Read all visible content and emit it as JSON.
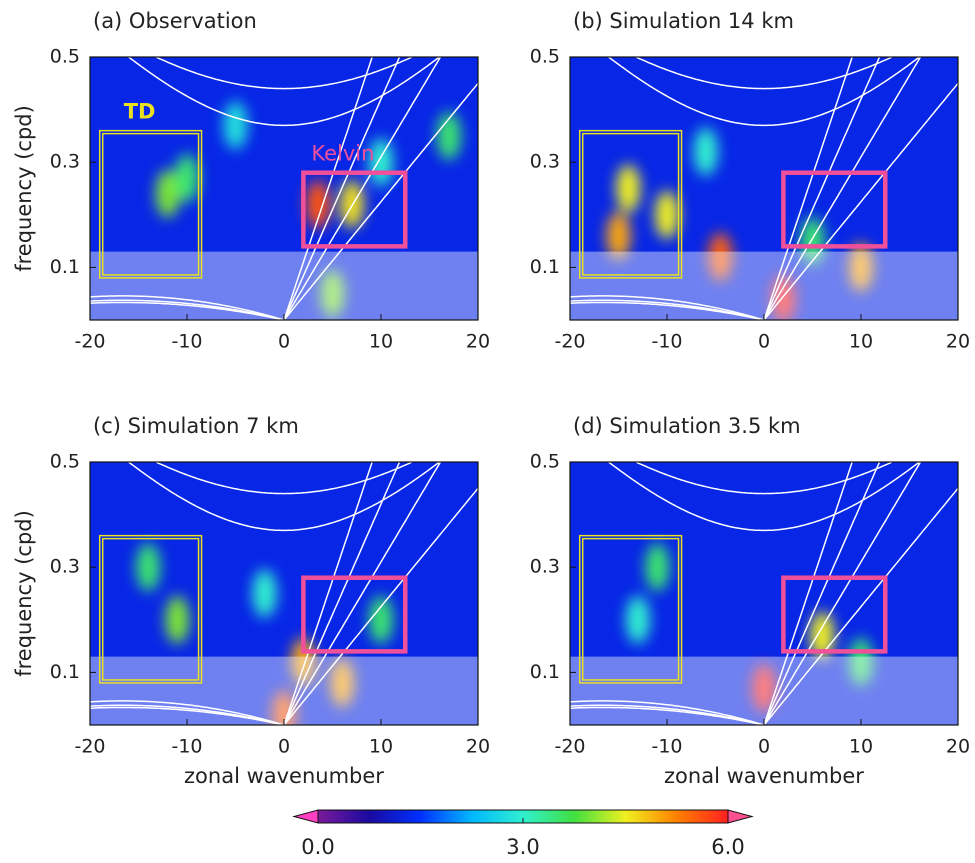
{
  "chart_data": [
    {
      "type": "heatmap",
      "title": "(a) Observation",
      "ylabel": "frequency (cpd)",
      "xlim": [
        -20,
        20
      ],
      "xticks": [
        -20,
        -10,
        0,
        10,
        20
      ],
      "ylim": [
        0,
        0.5
      ],
      "yticks": [
        0.1,
        0.3,
        0.5
      ],
      "background": 1.3,
      "shade_below": 0.13,
      "boxes": [
        {
          "label": "TD",
          "xlim": [
            -19,
            -8.5
          ],
          "ylim": [
            0.08,
            0.36
          ],
          "color": "#e8e020"
        },
        {
          "label": "Kelvin",
          "xlim": [
            2,
            12.5
          ],
          "ylim": [
            0.14,
            0.28
          ],
          "color": "#f0509a"
        }
      ],
      "blobs": [
        {
          "x": -12,
          "y": 0.24,
          "value": 4
        },
        {
          "x": -10,
          "y": 0.27,
          "value": 3.5
        },
        {
          "x": 3.5,
          "y": 0.22,
          "value": 5.6
        },
        {
          "x": 7,
          "y": 0.22,
          "value": 4.6
        },
        {
          "x": 10,
          "y": 0.3,
          "value": 3
        },
        {
          "x": -5,
          "y": 0.37,
          "value": 2.8
        },
        {
          "x": 17,
          "y": 0.35,
          "value": 3.5
        },
        {
          "x": 5,
          "y": 0.05,
          "value": 4
        }
      ]
    },
    {
      "type": "heatmap",
      "title": "(b) Simulation 14 km",
      "xlim": [
        -20,
        20
      ],
      "xticks": [
        -20,
        -10,
        0,
        10,
        20
      ],
      "ylim": [
        0,
        0.5
      ],
      "yticks": [
        0.1,
        0.3,
        0.5
      ],
      "background": 1.3,
      "shade_below": 0.13,
      "boxes": [
        {
          "xlim": [
            -19,
            -8.5
          ],
          "ylim": [
            0.08,
            0.36
          ],
          "color": "#e8e020"
        },
        {
          "xlim": [
            2,
            12.5
          ],
          "ylim": [
            0.14,
            0.28
          ],
          "color": "#f0509a"
        }
      ],
      "blobs": [
        {
          "x": -14,
          "y": 0.25,
          "value": 4.5
        },
        {
          "x": -15,
          "y": 0.16,
          "value": 5
        },
        {
          "x": -10,
          "y": 0.2,
          "value": 4.5
        },
        {
          "x": -4.5,
          "y": 0.12,
          "value": 5.5
        },
        {
          "x": 5,
          "y": 0.15,
          "value": 3.5
        },
        {
          "x": 10,
          "y": 0.1,
          "value": 5
        },
        {
          "x": 2,
          "y": 0.04,
          "value": 6
        },
        {
          "x": -6,
          "y": 0.32,
          "value": 3
        }
      ]
    },
    {
      "type": "heatmap",
      "title": "(c) Simulation 7 km",
      "ylabel": "frequency (cpd)",
      "xlabel": "zonal wavenumber",
      "xlim": [
        -20,
        20
      ],
      "xticks": [
        -20,
        -10,
        0,
        10,
        20
      ],
      "ylim": [
        0,
        0.5
      ],
      "yticks": [
        0.1,
        0.3,
        0.5
      ],
      "background": 1.3,
      "shade_below": 0.13,
      "boxes": [
        {
          "xlim": [
            -19,
            -8.5
          ],
          "ylim": [
            0.08,
            0.36
          ],
          "color": "#e8e020"
        },
        {
          "xlim": [
            2,
            12.5
          ],
          "ylim": [
            0.14,
            0.28
          ],
          "color": "#f0509a"
        }
      ],
      "blobs": [
        {
          "x": -14,
          "y": 0.3,
          "value": 3.5
        },
        {
          "x": -11,
          "y": 0.2,
          "value": 4
        },
        {
          "x": 0,
          "y": 0.02,
          "value": 5.5
        },
        {
          "x": 2,
          "y": 0.12,
          "value": 5
        },
        {
          "x": 6,
          "y": 0.08,
          "value": 5
        },
        {
          "x": 10,
          "y": 0.2,
          "value": 3.5
        },
        {
          "x": -2,
          "y": 0.25,
          "value": 3
        }
      ]
    },
    {
      "type": "heatmap",
      "title": "(d) Simulation 3.5 km",
      "xlabel": "zonal wavenumber",
      "xlim": [
        -20,
        20
      ],
      "xticks": [
        -20,
        -10,
        0,
        10,
        20
      ],
      "ylim": [
        0,
        0.5
      ],
      "yticks": [
        0.1,
        0.3,
        0.5
      ],
      "background": 1.3,
      "shade_below": 0.13,
      "boxes": [
        {
          "xlim": [
            -19,
            -8.5
          ],
          "ylim": [
            0.08,
            0.36
          ],
          "color": "#e8e020"
        },
        {
          "xlim": [
            2,
            12.5
          ],
          "ylim": [
            0.14,
            0.28
          ],
          "color": "#f0509a"
        }
      ],
      "blobs": [
        {
          "x": -11,
          "y": 0.3,
          "value": 3.5
        },
        {
          "x": 0,
          "y": 0.07,
          "value": 6
        },
        {
          "x": 6,
          "y": 0.17,
          "value": 4.5
        },
        {
          "x": 10,
          "y": 0.12,
          "value": 3.5
        },
        {
          "x": -13,
          "y": 0.2,
          "value": 3
        }
      ]
    }
  ],
  "colorbar": {
    "clim": [
      0,
      6
    ],
    "ticks": [
      {
        "value": 0,
        "label": "0.0"
      },
      {
        "value": 3,
        "label": "3.0"
      },
      {
        "value": 6,
        "label": "6.0"
      }
    ],
    "colors": [
      "#7a1a9a",
      "#1a0aa0",
      "#0030ff",
      "#00b8ff",
      "#30f0d0",
      "#40e040",
      "#f0f020",
      "#ff8000",
      "#ff2020"
    ],
    "under": "#ff40c0",
    "over": "#ff5090"
  }
}
